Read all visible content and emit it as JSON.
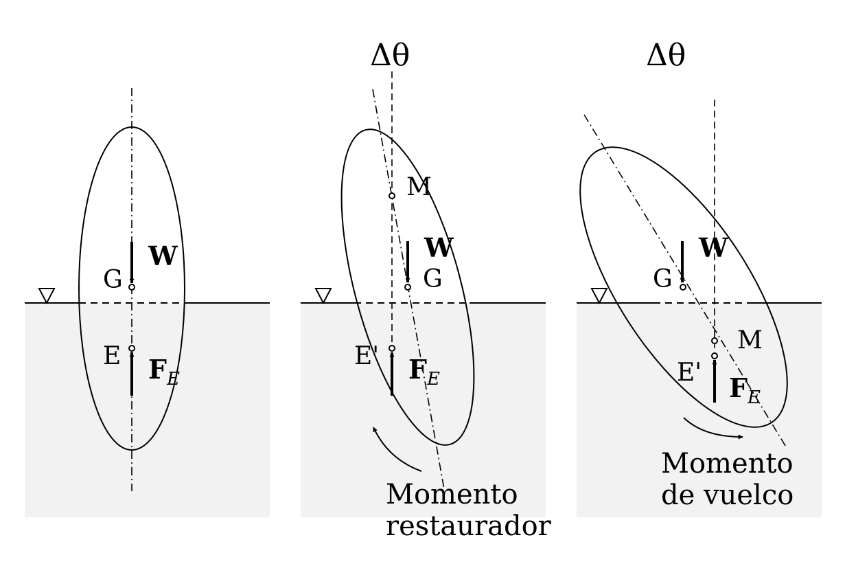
{
  "panels": [
    {
      "id": "stable-upright",
      "angle_label": "",
      "labels": {
        "G": "G",
        "E": "E",
        "M": "",
        "W": "W",
        "F": "F",
        "F_sub": "E"
      },
      "moment_label": []
    },
    {
      "id": "restoring",
      "angle_label": "Δθ",
      "labels": {
        "G": "G",
        "E": "E'",
        "M": "M",
        "W": "W",
        "F": "F",
        "F_sub": "E"
      },
      "moment_label": [
        "Momento",
        "restaurador"
      ]
    },
    {
      "id": "overturning",
      "angle_label": "Δθ",
      "labels": {
        "G": "G",
        "E": "E'",
        "M": "M",
        "W": "W",
        "F": "F",
        "F_sub": "E"
      },
      "moment_label": [
        "Momento",
        "de vuelco"
      ]
    }
  ],
  "colors": {
    "water": "#f2f2f2",
    "line": "#000000",
    "background": "#ffffff"
  },
  "icons": {
    "water_level": "inverted-triangle-icon"
  }
}
